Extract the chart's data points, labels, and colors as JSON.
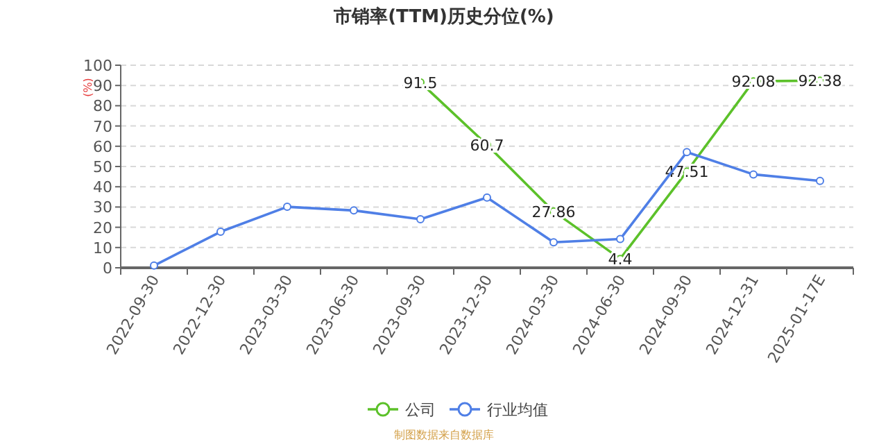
{
  "chart_data": {
    "type": "line",
    "title": "市销率(TTM)历史分位(%)",
    "ylabel": "(%)",
    "categories": [
      "2022-09-30",
      "2022-12-30",
      "2023-03-30",
      "2023-06-30",
      "2023-09-30",
      "2023-12-30",
      "2024-03-30",
      "2024-06-30",
      "2024-09-30",
      "2024-12-31",
      "2025-01-17E"
    ],
    "series": [
      {
        "name": "公司",
        "color": "#5cc12a",
        "values": [
          null,
          null,
          null,
          null,
          91.5,
          60.7,
          27.86,
          4.4,
          47.51,
          92.08,
          92.38
        ],
        "value_labels": [
          null,
          null,
          null,
          null,
          "91.5",
          "60.7",
          "27.86",
          "4.4",
          "47.51",
          "92.08",
          "92.38"
        ]
      },
      {
        "name": "行业均值",
        "color": "#4f7fe6",
        "values": [
          1.1,
          17.8,
          30.1,
          28.3,
          24,
          34.7,
          12.6,
          14.2,
          57.1,
          46.1,
          42.9
        ]
      }
    ],
    "ylim": [
      0,
      100
    ],
    "yticks": [
      0,
      10,
      20,
      30,
      40,
      50,
      60,
      70,
      80,
      90,
      100
    ],
    "grid": "y",
    "legend": "bottom",
    "marker": "circle",
    "annotations": [
      "制图数据来自数据库"
    ]
  }
}
